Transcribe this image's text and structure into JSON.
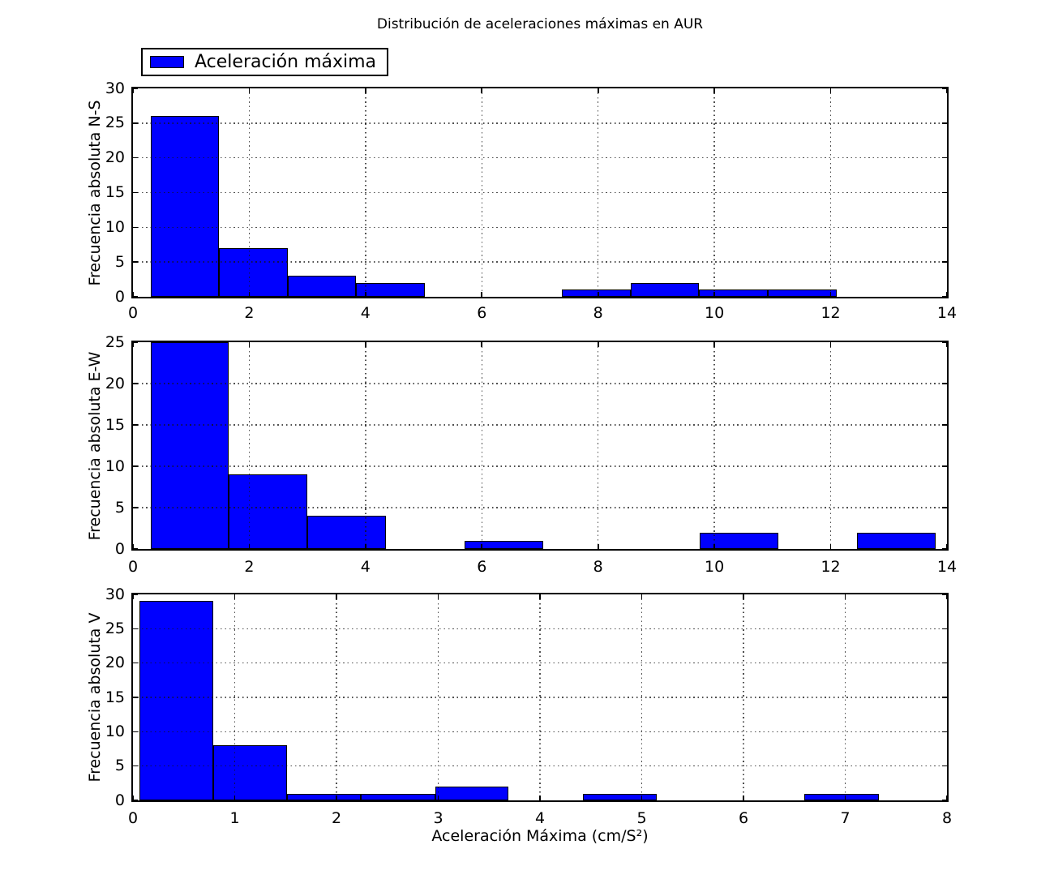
{
  "figure": {
    "title": "Distribución de aceleraciones máximas en AUR",
    "background_color": "#ffffff"
  },
  "legend": {
    "label": "Aceleración máxima",
    "swatch_color": "#0000ff"
  },
  "style": {
    "bar_color": "#0000ff",
    "bar_edge_color": "#000000",
    "axis_color": "#000000",
    "grid_style": "dotted",
    "grid_on": true
  },
  "chart_data": [
    {
      "type": "bar",
      "subtype": "histogram",
      "name": "n-s",
      "ylabel": "Frecuencia absoluta N-S",
      "xlabel": "",
      "xlim": [
        0,
        14
      ],
      "ylim": [
        0,
        30
      ],
      "xticks": [
        0,
        2,
        4,
        6,
        8,
        10,
        12,
        14
      ],
      "yticks": [
        0,
        5,
        10,
        15,
        20,
        25,
        30
      ],
      "bin_edges": [
        0.3,
        1.48,
        2.66,
        3.84,
        5.02,
        6.2,
        7.38,
        8.56,
        9.74,
        10.92,
        12.1
      ],
      "counts": [
        26,
        7,
        3,
        2,
        0,
        0,
        1,
        2,
        1,
        1
      ]
    },
    {
      "type": "bar",
      "subtype": "histogram",
      "name": "e-w",
      "ylabel": "Frecuencia absoluta E-W",
      "xlabel": "",
      "xlim": [
        0,
        14
      ],
      "ylim": [
        0,
        25
      ],
      "xticks": [
        0,
        2,
        4,
        6,
        8,
        10,
        12,
        14
      ],
      "yticks": [
        0,
        5,
        10,
        15,
        20,
        25
      ],
      "bin_edges": [
        0.3,
        1.65,
        3.0,
        4.35,
        5.7,
        7.05,
        8.4,
        9.75,
        11.1,
        12.45,
        13.8
      ],
      "counts": [
        25,
        9,
        4,
        0,
        1,
        0,
        0,
        2,
        0,
        2
      ]
    },
    {
      "type": "bar",
      "subtype": "histogram",
      "name": "v",
      "ylabel": "Frecuencia absoluta V",
      "xlabel": "Aceleración Máxima (cm/S²)",
      "xlim": [
        0,
        8
      ],
      "ylim": [
        0,
        30
      ],
      "xticks": [
        0,
        1,
        2,
        3,
        4,
        5,
        6,
        7,
        8
      ],
      "yticks": [
        0,
        5,
        10,
        15,
        20,
        25,
        30
      ],
      "bin_edges": [
        0.06,
        0.79,
        1.51,
        2.24,
        2.97,
        3.69,
        4.42,
        5.15,
        5.87,
        6.6,
        7.33
      ],
      "counts": [
        29,
        8,
        1,
        1,
        2,
        0,
        1,
        0,
        0,
        1
      ]
    }
  ]
}
